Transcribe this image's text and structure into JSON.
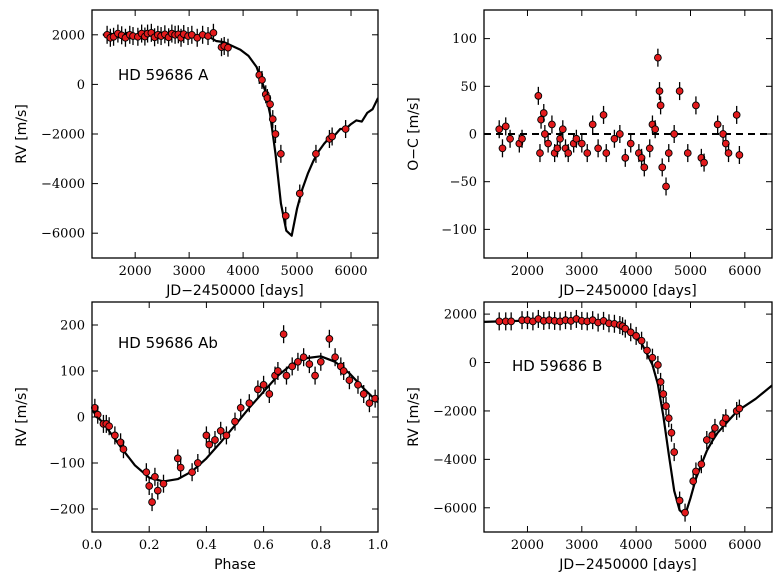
{
  "chart_data": [
    {
      "type": "scatter",
      "panel": "top-left",
      "annotation": "HD 59686 A",
      "xlabel": "JD−2450000 [days]",
      "ylabel": "RV [m/s]",
      "xlim": [
        1200,
        6500
      ],
      "ylim": [
        -7000,
        3000
      ],
      "xticks": [
        2000,
        3000,
        4000,
        5000,
        6000
      ],
      "yticks": [
        2000,
        0,
        -2000,
        -4000,
        -6000
      ],
      "xtick_labels": [
        "2000",
        "3000",
        "4000",
        "5000",
        "6000"
      ],
      "ytick_labels": [
        "2000",
        "0",
        "−2000",
        "−4000",
        "−6000"
      ],
      "marker_color": "#e31a1c",
      "model": {
        "x": [
          1400,
          1550,
          1700,
          1850,
          2000,
          2150,
          2300,
          2450,
          2600,
          2750,
          2900,
          3050,
          3200,
          3350,
          3500,
          3650,
          3800,
          3950,
          4100,
          4250,
          4400,
          4500,
          4600,
          4700,
          4800,
          4900,
          5000,
          5100,
          5200,
          5300,
          5400,
          5500,
          5600,
          5700,
          5800,
          5900,
          6000,
          6100,
          6200,
          6300,
          6400,
          6500
        ],
        "y": [
          2000,
          2050,
          1900,
          2080,
          1950,
          2050,
          1950,
          2100,
          1970,
          2080,
          1950,
          2050,
          1900,
          1950,
          1750,
          1700,
          1550,
          1400,
          1150,
          700,
          -200,
          -1200,
          -2800,
          -4800,
          -5900,
          -6100,
          -5000,
          -4200,
          -3600,
          -3100,
          -2700,
          -2400,
          -2150,
          -2050,
          -1800,
          -1800,
          -1600,
          -1450,
          -1500,
          -1150,
          -1000,
          -550
        ]
      },
      "points": {
        "x": [
          1480,
          1540,
          1600,
          1680,
          1750,
          1820,
          1900,
          1960,
          2050,
          2120,
          2180,
          2230,
          2300,
          2360,
          2420,
          2480,
          2550,
          2620,
          2680,
          2740,
          2800,
          2850,
          2900,
          2980,
          3050,
          3150,
          3250,
          3350,
          3450,
          3600,
          3650,
          3720,
          4300,
          4350,
          4420,
          4450,
          4500,
          4550,
          4600,
          4700,
          4790,
          5050,
          5350,
          5600,
          5650,
          5900
        ],
        "y": [
          2000,
          1880,
          1920,
          2050,
          1980,
          1880,
          2000,
          1950,
          1920,
          2050,
          1930,
          2050,
          2080,
          1900,
          2000,
          1950,
          2020,
          1900,
          2050,
          2000,
          2020,
          1880,
          2030,
          1950,
          2000,
          1880,
          2000,
          1950,
          2080,
          1500,
          1550,
          1480,
          380,
          180,
          -400,
          -550,
          -800,
          -1400,
          -2000,
          -2800,
          -5300,
          -4400,
          -2800,
          -2200,
          -2100,
          -1800
        ]
      }
    },
    {
      "type": "scatter",
      "panel": "top-right",
      "xlabel": "JD−2450000 [days]",
      "ylabel": "O−C [m/s]",
      "xlim": [
        1200,
        6500
      ],
      "ylim": [
        -130,
        130
      ],
      "xticks": [
        2000,
        3000,
        4000,
        5000,
        6000
      ],
      "yticks": [
        100,
        50,
        0,
        -50,
        -100
      ],
      "xtick_labels": [
        "2000",
        "3000",
        "4000",
        "5000",
        "6000"
      ],
      "ytick_labels": [
        "100",
        "50",
        "0",
        "−50",
        "−100"
      ],
      "reference_line": 0,
      "marker_color": "#e31a1c",
      "points": {
        "x": [
          1480,
          1540,
          1600,
          1680,
          1850,
          1900,
          2200,
          2230,
          2250,
          2300,
          2320,
          2380,
          2450,
          2500,
          2550,
          2600,
          2650,
          2700,
          2750,
          2850,
          2900,
          3000,
          3100,
          3200,
          3300,
          3400,
          3450,
          3600,
          3700,
          3800,
          3900,
          4050,
          4100,
          4150,
          4250,
          4300,
          4350,
          4400,
          4430,
          4450,
          4480,
          4550,
          4600,
          4700,
          4800,
          4950,
          5100,
          5200,
          5250,
          5500,
          5600,
          5650,
          5700,
          5850,
          5900
        ],
        "y": [
          5,
          -15,
          8,
          -5,
          -10,
          -5,
          40,
          -20,
          15,
          22,
          0,
          -10,
          10,
          -20,
          -15,
          -5,
          5,
          -15,
          -20,
          -10,
          -5,
          -10,
          -20,
          10,
          -15,
          20,
          -20,
          -5,
          0,
          -25,
          -10,
          -20,
          -25,
          -35,
          -15,
          10,
          5,
          80,
          45,
          30,
          -35,
          -55,
          -20,
          0,
          45,
          -20,
          30,
          -25,
          -30,
          10,
          0,
          -10,
          -20,
          20,
          -22
        ]
      }
    },
    {
      "type": "scatter",
      "panel": "bottom-left",
      "annotation": "HD 59686 Ab",
      "xlabel": "Phase",
      "ylabel": "RV [m/s]",
      "xlim": [
        0,
        1
      ],
      "ylim": [
        -250,
        250
      ],
      "xticks": [
        0,
        0.2,
        0.4,
        0.6,
        0.8,
        1.0
      ],
      "yticks": [
        200,
        100,
        0,
        -100,
        -200
      ],
      "xtick_labels": [
        "0.0",
        "0.2",
        "0.4",
        "0.6",
        "0.8",
        "1.0"
      ],
      "ytick_labels": [
        "200",
        "100",
        "0",
        "−100",
        "−200"
      ],
      "marker_color": "#e31a1c",
      "model": {
        "x": [
          0,
          0.05,
          0.1,
          0.15,
          0.2,
          0.25,
          0.3,
          0.35,
          0.4,
          0.45,
          0.5,
          0.55,
          0.6,
          0.65,
          0.7,
          0.75,
          0.8,
          0.85,
          0.9,
          0.95,
          1.0
        ],
        "y": [
          15,
          -22,
          -65,
          -105,
          -132,
          -140,
          -135,
          -118,
          -90,
          -55,
          -18,
          20,
          55,
          90,
          115,
          128,
          132,
          120,
          95,
          62,
          32
        ]
      },
      "points": {
        "x": [
          0.01,
          0.02,
          0.04,
          0.05,
          0.06,
          0.08,
          0.1,
          0.11,
          0.19,
          0.2,
          0.21,
          0.22,
          0.23,
          0.25,
          0.3,
          0.31,
          0.35,
          0.37,
          0.4,
          0.41,
          0.43,
          0.45,
          0.47,
          0.5,
          0.52,
          0.55,
          0.58,
          0.6,
          0.62,
          0.64,
          0.65,
          0.67,
          0.68,
          0.7,
          0.72,
          0.74,
          0.76,
          0.78,
          0.8,
          0.83,
          0.85,
          0.87,
          0.88,
          0.9,
          0.93,
          0.95,
          0.97,
          0.99
        ],
        "y": [
          20,
          5,
          -15,
          -15,
          -20,
          -40,
          -55,
          -70,
          -120,
          -150,
          -185,
          -130,
          -160,
          -145,
          -90,
          -110,
          -120,
          -100,
          -40,
          -60,
          -50,
          -30,
          -40,
          -10,
          20,
          30,
          60,
          70,
          50,
          90,
          100,
          180,
          90,
          110,
          120,
          130,
          115,
          90,
          120,
          170,
          130,
          110,
          100,
          80,
          70,
          50,
          30,
          40
        ]
      }
    },
    {
      "type": "scatter",
      "panel": "bottom-right",
      "annotation": "HD 59686 B",
      "xlabel": "JD−2450000 [days]",
      "ylabel": "RV [m/s]",
      "xlim": [
        1200,
        6500
      ],
      "ylim": [
        -7000,
        2500
      ],
      "xticks": [
        2000,
        3000,
        4000,
        5000,
        6000
      ],
      "yticks": [
        2000,
        0,
        -2000,
        -4000,
        -6000
      ],
      "xtick_labels": [
        "2000",
        "3000",
        "4000",
        "5000",
        "6000"
      ],
      "ytick_labels": [
        "2000",
        "0",
        "−2000",
        "−4000",
        "−6000"
      ],
      "marker_color": "#e31a1c",
      "model": {
        "x": [
          1200,
          1500,
          2000,
          2500,
          3000,
          3300,
          3600,
          3900,
          4100,
          4300,
          4400,
          4500,
          4600,
          4700,
          4800,
          4900,
          5000,
          5100,
          5200,
          5300,
          5400,
          5500,
          5600,
          5700,
          5800,
          5900,
          6000,
          6200,
          6500
        ],
        "y": [
          1680,
          1700,
          1730,
          1760,
          1780,
          1720,
          1550,
          1200,
          800,
          -100,
          -900,
          -2200,
          -3800,
          -5300,
          -6100,
          -6300,
          -5600,
          -4800,
          -4200,
          -3650,
          -3250,
          -2900,
          -2650,
          -2400,
          -2150,
          -1950,
          -1800,
          -1500,
          -950
        ]
      },
      "points": {
        "x": [
          1480,
          1600,
          1700,
          1900,
          2000,
          2100,
          2200,
          2300,
          2400,
          2500,
          2600,
          2700,
          2800,
          2900,
          3000,
          3100,
          3200,
          3300,
          3400,
          3500,
          3600,
          3700,
          3750,
          3800,
          3900,
          4000,
          4100,
          4200,
          4300,
          4400,
          4450,
          4500,
          4550,
          4600,
          4650,
          4700,
          4800,
          4900,
          5050,
          5100,
          5200,
          5300,
          5400,
          5450,
          5600,
          5650,
          5850,
          5900
        ],
        "y": [
          1700,
          1700,
          1700,
          1750,
          1750,
          1700,
          1800,
          1720,
          1750,
          1720,
          1700,
          1750,
          1720,
          1800,
          1720,
          1700,
          1750,
          1650,
          1720,
          1620,
          1600,
          1550,
          1500,
          1400,
          1250,
          1100,
          900,
          500,
          200,
          -100,
          -800,
          -1300,
          -1800,
          -2300,
          -2900,
          -3700,
          -5700,
          -6200,
          -4900,
          -4500,
          -4200,
          -3200,
          -3000,
          -2700,
          -2500,
          -2300,
          -2000,
          -1900
        ]
      }
    }
  ]
}
